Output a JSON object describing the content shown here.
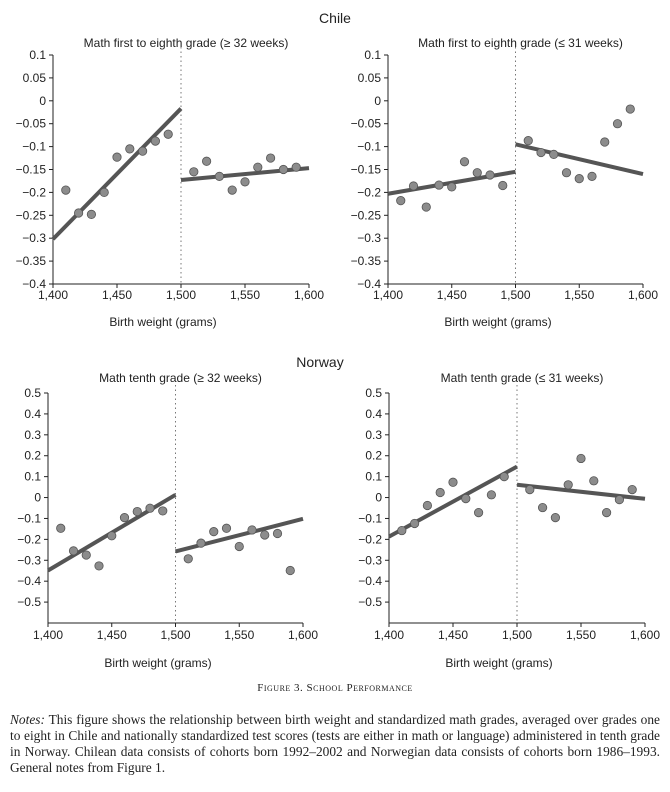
{
  "figure": {
    "caption": "Figure 3. School Performance",
    "notes_label": "Notes:",
    "notes_text": " This figure shows the relationship between birth weight and standardized math grades, averaged over grades one to eight in Chile and nationally standardized test scores (tests are either in math or language) administered in tenth grade in Norway. Chilean data consists of cohorts born 1992–2002 and Norwegian data consists of cohorts born 1986–1993. General notes from Figure 1."
  },
  "groups": [
    {
      "title": "Chile"
    },
    {
      "title": "Norway"
    }
  ],
  "colors": {
    "line": "#555555",
    "point_fill": "#8c8c8c",
    "point_stroke": "#555555",
    "axis": "#222222"
  },
  "chart_data": [
    {
      "type": "scatter",
      "group": "Chile",
      "title": "Math first to eighth grade (≥ 32 weeks)",
      "xlabel": "Birth weight (grams)",
      "xlim": [
        1400,
        1600
      ],
      "ylim": [
        -0.4,
        0.1
      ],
      "xticks": [
        1400,
        1450,
        1500,
        1550,
        1600
      ],
      "xtick_labels": [
        "1,400",
        "1,450",
        "1,500",
        "1,550",
        "1,600"
      ],
      "yticks": [
        0.1,
        0.05,
        0,
        -0.05,
        -0.1,
        -0.15,
        -0.2,
        -0.25,
        -0.3,
        -0.35,
        -0.4
      ],
      "ytick_labels": [
        "0.1",
        "0.05",
        "0",
        "−0.05",
        "−0.1",
        "−0.15",
        "−0.2",
        "−0.25",
        "−0.3",
        "−0.35",
        "−0.4"
      ],
      "cutoff": 1500,
      "x": [
        1410,
        1420,
        1430,
        1440,
        1450,
        1460,
        1470,
        1480,
        1490,
        1510,
        1520,
        1530,
        1540,
        1550,
        1560,
        1570,
        1580,
        1590
      ],
      "y": [
        -0.195,
        -0.245,
        -0.248,
        -0.2,
        -0.123,
        -0.105,
        -0.11,
        -0.088,
        -0.073,
        -0.155,
        -0.132,
        -0.165,
        -0.195,
        -0.177,
        -0.145,
        -0.125,
        -0.15,
        -0.145
      ],
      "fits": [
        {
          "x": [
            1400,
            1500
          ],
          "y": [
            -0.302,
            -0.017
          ]
        },
        {
          "x": [
            1500,
            1600
          ],
          "y": [
            -0.173,
            -0.147
          ]
        }
      ]
    },
    {
      "type": "scatter",
      "group": "Chile",
      "title": "Math first to eighth grade (≤ 31 weeks)",
      "xlabel": "Birth weight (grams)",
      "xlim": [
        1400,
        1600
      ],
      "ylim": [
        -0.4,
        0.1
      ],
      "xticks": [
        1400,
        1450,
        1500,
        1550,
        1600
      ],
      "xtick_labels": [
        "1,400",
        "1,450",
        "1,500",
        "1,550",
        "1,600"
      ],
      "yticks": [
        0.1,
        0.05,
        0,
        -0.05,
        -0.1,
        -0.15,
        -0.2,
        -0.25,
        -0.3,
        -0.35,
        -0.4
      ],
      "ytick_labels": [
        "0.1",
        "0.05",
        "0",
        "−0.05",
        "−0.1",
        "−0.15",
        "−0.2",
        "−0.25",
        "−0.3",
        "−0.35",
        "−0.4"
      ],
      "cutoff": 1500,
      "x": [
        1410,
        1420,
        1430,
        1440,
        1450,
        1460,
        1470,
        1480,
        1490,
        1510,
        1520,
        1530,
        1540,
        1550,
        1560,
        1570,
        1580,
        1590
      ],
      "y": [
        -0.218,
        -0.186,
        -0.232,
        -0.184,
        -0.188,
        -0.133,
        -0.157,
        -0.162,
        -0.185,
        -0.087,
        -0.113,
        -0.117,
        -0.157,
        -0.17,
        -0.165,
        -0.09,
        -0.05,
        -0.018
      ],
      "fits": [
        {
          "x": [
            1400,
            1500
          ],
          "y": [
            -0.203,
            -0.155
          ]
        },
        {
          "x": [
            1500,
            1600
          ],
          "y": [
            -0.095,
            -0.16
          ]
        }
      ]
    },
    {
      "type": "scatter",
      "group": "Norway",
      "title": "Math tenth grade (≥ 32 weeks)",
      "xlabel": "Birth weight (grams)",
      "xlim": [
        1400,
        1600
      ],
      "ylim": [
        -0.6,
        0.5
      ],
      "xticks": [
        1400,
        1450,
        1500,
        1550,
        1600
      ],
      "xtick_labels": [
        "1,400",
        "1,450",
        "1,500",
        "1,550",
        "1,600"
      ],
      "yticks": [
        0.5,
        0.4,
        0.3,
        0.2,
        0.1,
        0,
        -0.1,
        -0.2,
        -0.3,
        -0.4,
        -0.5
      ],
      "ytick_labels": [
        "0.5",
        "0.4",
        "0.3",
        "0.2",
        "0.1",
        "0",
        "−0.1",
        "−0.2",
        "−0.3",
        "−0.4",
        "−0.5"
      ],
      "cutoff": 1500,
      "x": [
        1410,
        1420,
        1430,
        1440,
        1450,
        1460,
        1470,
        1480,
        1490,
        1510,
        1520,
        1530,
        1540,
        1550,
        1560,
        1570,
        1580,
        1590
      ],
      "y": [
        -0.147,
        -0.255,
        -0.275,
        -0.327,
        -0.183,
        -0.096,
        -0.067,
        -0.051,
        -0.064,
        -0.293,
        -0.218,
        -0.163,
        -0.147,
        -0.234,
        -0.155,
        -0.179,
        -0.172,
        -0.349
      ],
      "fits": [
        {
          "x": [
            1400,
            1500
          ],
          "y": [
            -0.349,
            0.013
          ]
        },
        {
          "x": [
            1500,
            1600
          ],
          "y": [
            -0.258,
            -0.102
          ]
        }
      ]
    },
    {
      "type": "scatter",
      "group": "Norway",
      "title": "Math tenth grade (≤ 31 weeks)",
      "xlabel": "Birth weight (grams)",
      "xlim": [
        1400,
        1600
      ],
      "ylim": [
        -0.6,
        0.5
      ],
      "xticks": [
        1400,
        1450,
        1500,
        1550,
        1600
      ],
      "xtick_labels": [
        "1,400",
        "1,450",
        "1,500",
        "1,550",
        "1,600"
      ],
      "yticks": [
        0.5,
        0.4,
        0.3,
        0.2,
        0.1,
        0,
        -0.1,
        -0.2,
        -0.3,
        -0.4,
        -0.5
      ],
      "ytick_labels": [
        "0.5",
        "0.4",
        "0.3",
        "0.2",
        "0.1",
        "0",
        "−0.1",
        "−0.2",
        "−0.3",
        "−0.4",
        "−0.5"
      ],
      "cutoff": 1500,
      "x": [
        1410,
        1420,
        1430,
        1440,
        1450,
        1460,
        1470,
        1480,
        1490,
        1510,
        1520,
        1530,
        1540,
        1550,
        1560,
        1570,
        1580,
        1590
      ],
      "y": [
        -0.158,
        -0.124,
        -0.038,
        0.024,
        0.073,
        -0.005,
        -0.072,
        0.013,
        0.1,
        0.038,
        -0.048,
        -0.096,
        0.061,
        0.187,
        0.08,
        -0.072,
        -0.01,
        0.038
      ],
      "fits": [
        {
          "x": [
            1400,
            1500
          ],
          "y": [
            -0.187,
            0.148
          ]
        },
        {
          "x": [
            1500,
            1600
          ],
          "y": [
            0.061,
            -0.006
          ]
        }
      ]
    }
  ]
}
